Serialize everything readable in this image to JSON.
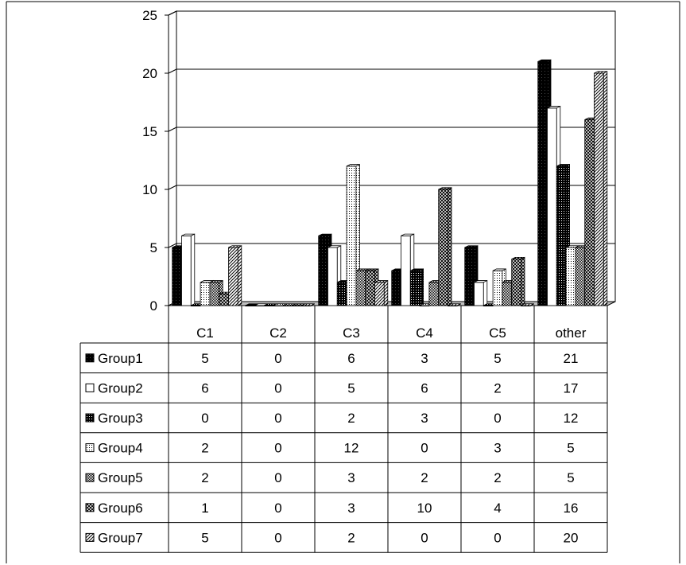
{
  "chart_data": {
    "type": "bar",
    "title": "",
    "xlabel": "",
    "ylabel": "",
    "ylim": [
      0,
      25
    ],
    "yticks": [
      0,
      5,
      10,
      15,
      20,
      25
    ],
    "grid": true,
    "legend": "data-table-left",
    "categories": [
      "C1",
      "C2",
      "C3",
      "C4",
      "C5",
      "other"
    ],
    "series": [
      {
        "name": "Group1",
        "values": [
          5,
          0,
          6,
          3,
          5,
          21
        ],
        "pattern": "solid-black"
      },
      {
        "name": "Group2",
        "values": [
          6,
          0,
          5,
          6,
          2,
          17
        ],
        "pattern": "white"
      },
      {
        "name": "Group3",
        "values": [
          0,
          0,
          2,
          3,
          0,
          12
        ],
        "pattern": "dark-dots"
      },
      {
        "name": "Group4",
        "values": [
          2,
          0,
          12,
          0,
          3,
          5
        ],
        "pattern": "light-dots"
      },
      {
        "name": "Group5",
        "values": [
          2,
          0,
          3,
          2,
          2,
          5
        ],
        "pattern": "dense-check"
      },
      {
        "name": "Group6",
        "values": [
          1,
          0,
          3,
          10,
          4,
          16
        ],
        "pattern": "crosshatch"
      },
      {
        "name": "Group7",
        "values": [
          5,
          0,
          2,
          0,
          0,
          20
        ],
        "pattern": "diagonal"
      }
    ],
    "colors": {
      "ink": "#000000",
      "background": "#ffffff",
      "floor": "#c0c0c0"
    }
  }
}
